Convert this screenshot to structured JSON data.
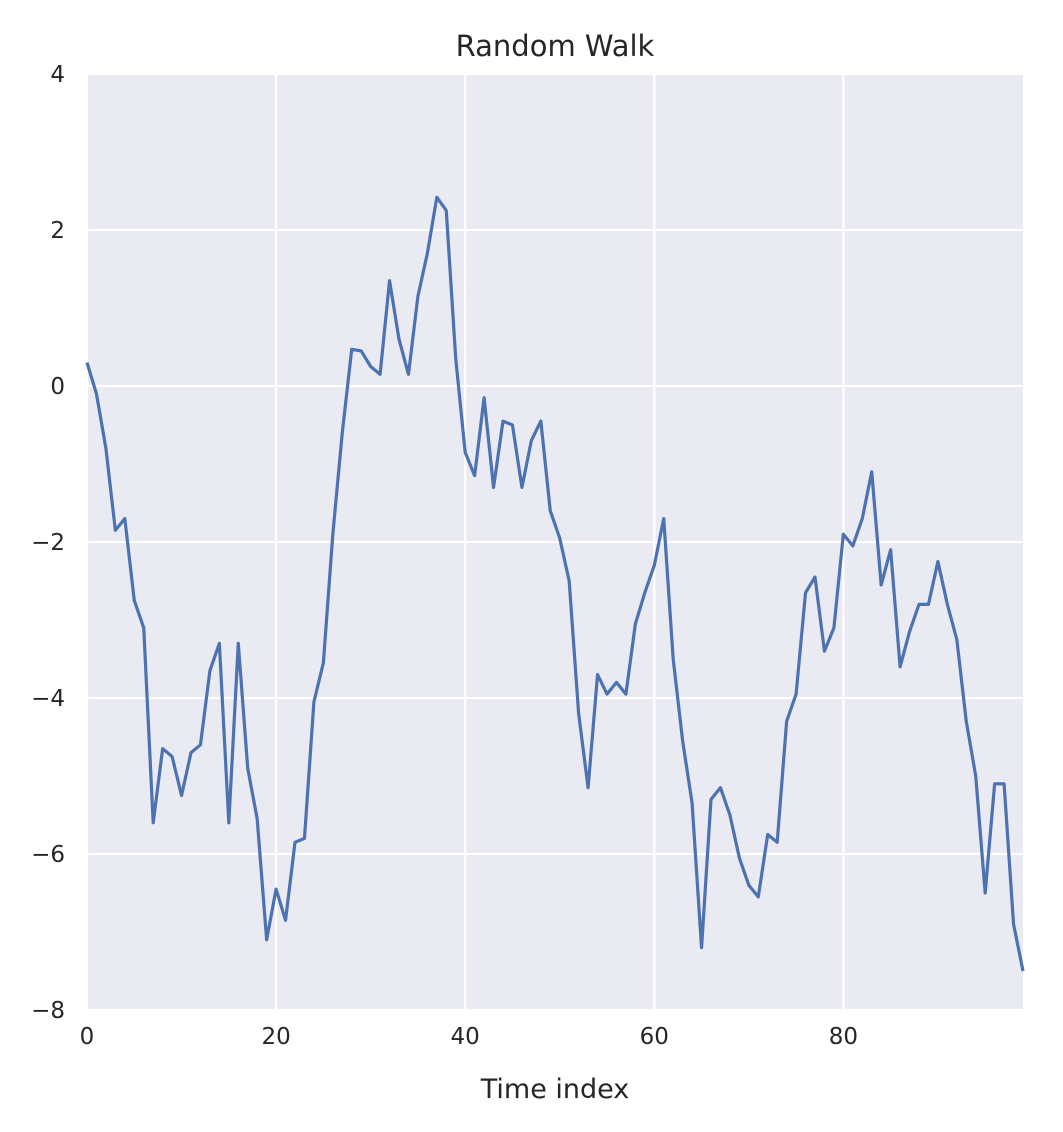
{
  "chart_data": {
    "type": "line",
    "title": "Random Walk",
    "xlabel": "Time index",
    "ylabel": "",
    "xlim": [
      0,
      99
    ],
    "ylim": [
      -8,
      4
    ],
    "xticks": [
      0,
      20,
      40,
      60,
      80
    ],
    "xtick_labels": [
      "0",
      "20",
      "40",
      "60",
      "80"
    ],
    "yticks": [
      4,
      2,
      0,
      -2,
      -4,
      -6,
      -8
    ],
    "ytick_labels": [
      "4",
      "2",
      "0",
      "−2",
      "−4",
      "−6",
      "−8"
    ],
    "grid": true,
    "legend": "none",
    "colors": {
      "background": "#EAEAF2",
      "grid": "#FFFFFF",
      "line": "#4C72B0",
      "text": "#262626"
    },
    "series": [
      {
        "x": [
          0,
          1,
          2,
          3,
          4,
          5,
          6,
          7,
          8,
          9,
          10,
          11,
          12,
          13,
          14,
          15,
          16,
          17,
          18,
          19,
          20,
          21,
          22,
          23,
          24,
          25,
          26,
          27,
          28,
          29,
          30,
          31,
          32,
          33,
          34,
          35,
          36,
          37,
          38,
          39,
          40,
          41,
          42,
          43,
          44,
          45,
          46,
          47,
          48,
          49,
          50,
          51,
          52,
          53,
          54,
          55,
          56,
          57,
          58,
          59,
          60,
          61,
          62,
          63,
          64,
          65,
          66,
          67,
          68,
          69,
          70,
          71,
          72,
          73,
          74,
          75,
          76,
          77,
          78,
          79,
          80,
          81,
          82,
          83,
          84,
          85,
          86,
          87,
          88,
          89,
          90,
          91,
          92,
          93,
          94,
          95,
          96,
          97,
          98,
          99
        ],
        "y": [
          0.3,
          -0.1,
          -0.8,
          -1.85,
          -1.7,
          -2.75,
          -3.1,
          -5.6,
          -4.65,
          -4.75,
          -5.25,
          -4.7,
          -4.6,
          -3.65,
          -3.3,
          -5.6,
          -3.3,
          -4.9,
          -5.55,
          -7.1,
          -6.45,
          -6.85,
          -5.85,
          -5.8,
          -4.05,
          -3.55,
          -1.9,
          -0.6,
          0.47,
          0.45,
          0.25,
          0.15,
          1.35,
          0.6,
          0.15,
          1.15,
          1.7,
          2.42,
          2.25,
          0.35,
          -0.85,
          -1.15,
          -0.15,
          -1.3,
          -0.45,
          -0.5,
          -1.3,
          -0.7,
          -0.45,
          -1.6,
          -1.95,
          -2.5,
          -4.2,
          -5.15,
          -3.7,
          -3.95,
          -3.8,
          -3.95,
          -3.05,
          -2.65,
          -2.3,
          -1.7,
          -3.5,
          -4.55,
          -5.35,
          -7.2,
          -5.3,
          -5.15,
          -5.5,
          -6.05,
          -6.4,
          -6.55,
          -5.75,
          -5.85,
          -4.3,
          -3.95,
          -2.65,
          -2.45,
          -3.4,
          -3.1,
          -1.9,
          -2.05,
          -1.7,
          -1.1,
          -2.55,
          -2.1,
          -3.6,
          -3.15,
          -2.8,
          -2.8,
          -2.25,
          -2.8,
          -3.25,
          -4.3,
          -5.0,
          -6.5,
          -5.1,
          -5.1,
          -6.9,
          -7.5
        ]
      }
    ]
  }
}
